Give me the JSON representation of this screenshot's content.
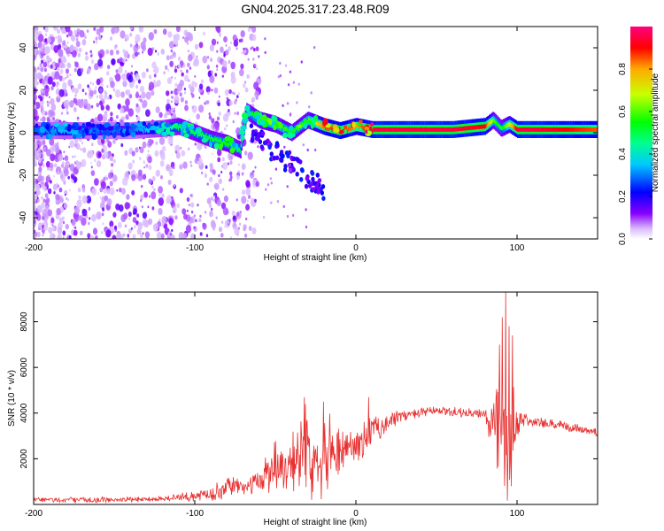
{
  "chart_data": [
    {
      "type": "heatmap",
      "title": "GN04.2025.317.23.48.R09",
      "xlabel": "Height of straight line (km)",
      "ylabel": "Frequency (Hz)",
      "xlim": [
        -200,
        150
      ],
      "ylim": [
        -50,
        50
      ],
      "xticks": [
        -200,
        -100,
        0,
        100
      ],
      "xtick_labels": [
        "-200",
        "-100",
        "0",
        "100"
      ],
      "yticks": [
        -40,
        -20,
        0,
        20,
        40
      ],
      "ytick_labels": [
        "-40",
        "-20",
        "0",
        "20",
        "40"
      ],
      "colorbar": {
        "label": "Normalized spectral amplitude",
        "range": [
          0,
          1
        ],
        "ticks": [
          0,
          0.2,
          0.4,
          0.6,
          0.8
        ],
        "tick_labels": [
          "0.0",
          "0.2",
          "0.4",
          "0.6",
          "0.8"
        ],
        "colors": [
          "#ffffff",
          "#8800ff",
          "#0000ff",
          "#00c8ff",
          "#00ff80",
          "#00ff00",
          "#c8ff00",
          "#ffc800",
          "#ff0000",
          "#ff0080"
        ]
      },
      "ridge": {
        "x": [
          -200,
          -180,
          -160,
          -140,
          -120,
          -110,
          -100,
          -90,
          -80,
          -72,
          -68,
          -60,
          -50,
          -40,
          -30,
          -20,
          -10,
          -5,
          0,
          10,
          20,
          40,
          60,
          80,
          85,
          90,
          95,
          100,
          110,
          150
        ],
        "y": [
          1,
          1,
          1,
          1,
          2,
          3,
          0,
          -3,
          -5,
          -8,
          10,
          6,
          4,
          0,
          6,
          3,
          1,
          2,
          3,
          1.5,
          1.5,
          1.5,
          1.5,
          3,
          6,
          2,
          4,
          1.5,
          1.5,
          1.5
        ],
        "amp": [
          0.3,
          0.35,
          0.3,
          0.3,
          0.4,
          0.5,
          0.5,
          0.5,
          0.55,
          0.5,
          0.5,
          0.6,
          0.6,
          0.55,
          0.6,
          0.85,
          0.9,
          0.85,
          0.8,
          0.95,
          0.95,
          0.95,
          0.95,
          0.9,
          0.6,
          0.5,
          0.7,
          0.95,
          0.95,
          0.85
        ]
      }
    },
    {
      "type": "line",
      "xlabel": "Height of straight line (km)",
      "ylabel": "SNR (10 * v/v)",
      "xlim": [
        -200,
        150
      ],
      "ylim": [
        0,
        9300
      ],
      "xticks": [
        -200,
        -100,
        0,
        100
      ],
      "xtick_labels": [
        "-200",
        "-100",
        "0",
        "100"
      ],
      "yticks": [
        2000,
        4000,
        6000,
        8000
      ],
      "ytick_labels": [
        "2000",
        "4000",
        "6000",
        "8000"
      ],
      "color": "#e83030",
      "envelope": {
        "x": [
          -200,
          -150,
          -120,
          -100,
          -90,
          -80,
          -75,
          -70,
          -60,
          -55,
          -50,
          -45,
          -40,
          -35,
          -30,
          -25,
          -20,
          -15,
          -10,
          -5,
          0,
          5,
          10,
          15,
          20,
          25,
          30,
          40,
          50,
          60,
          70,
          80,
          85,
          88,
          90,
          92,
          94,
          96,
          98,
          100,
          105,
          110,
          130,
          150
        ],
        "base": [
          200,
          200,
          250,
          350,
          500,
          700,
          900,
          700,
          1000,
          1500,
          1800,
          1600,
          2000,
          2200,
          2300,
          2000,
          2400,
          2500,
          2400,
          2500,
          2600,
          2800,
          3200,
          3400,
          3600,
          3800,
          3900,
          4000,
          4100,
          4050,
          4000,
          3900,
          3600,
          3200,
          3000,
          3200,
          3500,
          3400,
          3300,
          3600,
          3800,
          3600,
          3400,
          3200
        ],
        "spread": [
          150,
          150,
          150,
          250,
          400,
          500,
          500,
          300,
          600,
          1200,
          1400,
          1300,
          1700,
          2000,
          2200,
          1800,
          2300,
          1500,
          1600,
          1200,
          800,
          1000,
          900,
          700,
          500,
          400,
          300,
          250,
          250,
          250,
          250,
          300,
          1800,
          3000,
          4500,
          5000,
          4200,
          3500,
          2800,
          800,
          350,
          300,
          250,
          250
        ]
      },
      "peaks": [
        {
          "x": 93,
          "y": 9300
        },
        {
          "x": 95,
          "y": 7800
        },
        {
          "x": 91,
          "y": 8200
        },
        {
          "x": -32,
          "y": 4700
        },
        {
          "x": -20,
          "y": 4500
        },
        {
          "x": 8,
          "y": 4700
        },
        {
          "x": 89,
          "y": 7000
        },
        {
          "x": 97,
          "y": 7400
        }
      ]
    }
  ]
}
